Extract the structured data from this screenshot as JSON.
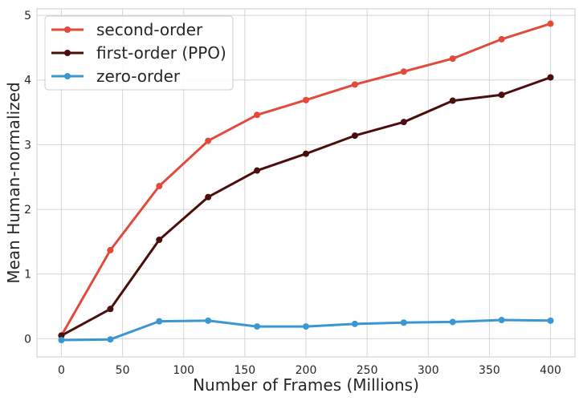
{
  "chart_data": {
    "type": "line",
    "xlabel": "Number of Frames (Millions)",
    "ylabel": "Mean Human-normalized",
    "x": [
      0,
      40,
      80,
      120,
      160,
      200,
      240,
      280,
      320,
      360,
      400
    ],
    "xlim": [
      -20,
      420
    ],
    "ylim": [
      -0.28,
      5.1
    ],
    "xticks": [
      0,
      50,
      100,
      150,
      200,
      250,
      300,
      350,
      400
    ],
    "yticks": [
      0,
      1,
      2,
      3,
      4,
      5
    ],
    "grid": true,
    "legend_position": "top-left",
    "series": [
      {
        "name": "second-order",
        "color": "#e24a3b",
        "values": [
          0.05,
          1.37,
          2.36,
          3.06,
          3.46,
          3.69,
          3.93,
          4.13,
          4.33,
          4.63,
          4.87
        ]
      },
      {
        "name": "first-order (PPO)",
        "color": "#4a0f0c",
        "values": [
          0.05,
          0.46,
          1.53,
          2.19,
          2.6,
          2.86,
          3.14,
          3.35,
          3.68,
          3.77,
          4.04
        ]
      },
      {
        "name": "zero-order",
        "color": "#3a97d4",
        "values": [
          -0.02,
          -0.01,
          0.27,
          0.28,
          0.19,
          0.19,
          0.23,
          0.25,
          0.26,
          0.29,
          0.28
        ]
      }
    ]
  }
}
